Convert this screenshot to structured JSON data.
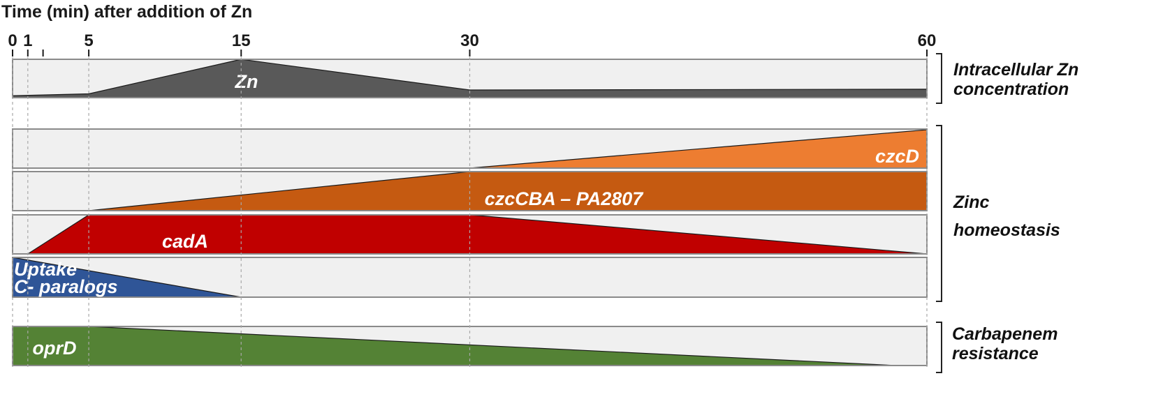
{
  "title": "Time (min) after addition of Zn",
  "time_ticks": [
    {
      "value": 0,
      "label": "0"
    },
    {
      "value": 1,
      "label": "1"
    },
    {
      "value": 2,
      "label": ""
    },
    {
      "value": 5,
      "label": "5"
    },
    {
      "value": 15,
      "label": "15"
    },
    {
      "value": 30,
      "label": "30"
    },
    {
      "value": 60,
      "label": "60"
    }
  ],
  "lanes": [
    {
      "id": "zn",
      "label": "Zn",
      "color": "#595959",
      "profile": [
        [
          0,
          0.05
        ],
        [
          5,
          0.1
        ],
        [
          15,
          1.0
        ],
        [
          30,
          0.2
        ],
        [
          60,
          0.22
        ]
      ]
    },
    {
      "id": "czcD",
      "label": "czcD",
      "color": "#ed7d31",
      "profile": [
        [
          0,
          0
        ],
        [
          30,
          0
        ],
        [
          60,
          1.0
        ]
      ]
    },
    {
      "id": "czcCBA",
      "label": "czcCBA – PA2807",
      "color": "#c55a11",
      "profile": [
        [
          0,
          0
        ],
        [
          5,
          0
        ],
        [
          30,
          1.0
        ],
        [
          60,
          1.0
        ]
      ]
    },
    {
      "id": "cadA",
      "label": "cadA",
      "color": "#c00000",
      "profile": [
        [
          1,
          0
        ],
        [
          5,
          1.0
        ],
        [
          30,
          1.0
        ],
        [
          60,
          0
        ]
      ]
    },
    {
      "id": "uptake",
      "label": "Uptake\nC- paralogs",
      "color": "#2f5597",
      "profile": [
        [
          0,
          1.0
        ],
        [
          15,
          0
        ]
      ]
    },
    {
      "id": "oprD",
      "label": "oprD",
      "color": "#548235",
      "profile": [
        [
          0,
          1.0
        ],
        [
          5,
          1.0
        ],
        [
          58,
          0
        ]
      ]
    }
  ],
  "groups": [
    {
      "id": "intracellular",
      "label": "Intracellular Zn\nconcentration"
    },
    {
      "id": "zinc",
      "label": "Zinc\nhomeostasis"
    },
    {
      "id": "carbapenem",
      "label": "Carbapenem\nresistance"
    }
  ]
}
